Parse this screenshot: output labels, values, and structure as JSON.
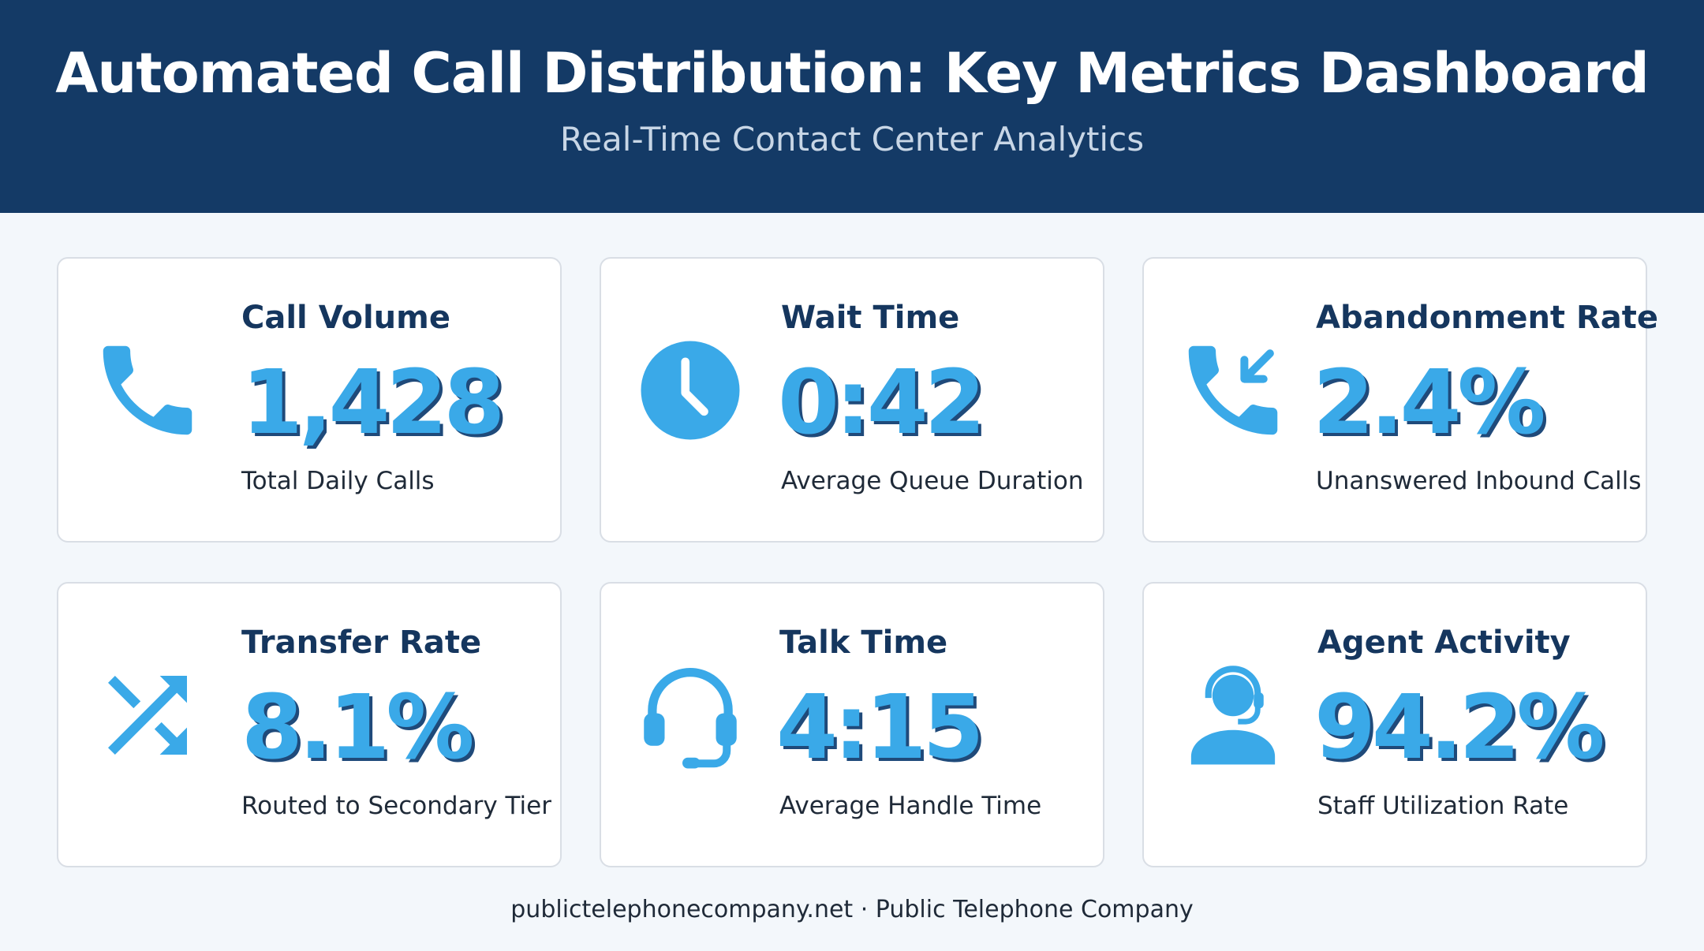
{
  "header": {
    "title": "Automated Call Distribution: Key Metrics Dashboard",
    "subtitle": "Real-Time Contact Center Analytics"
  },
  "colors": {
    "header_bg": "#143a66",
    "accent": "#3aa9e8",
    "accent_shadow": "#1f4a7a",
    "title_text": "#15365e",
    "page_bg": "#f3f7fb"
  },
  "cards": [
    {
      "title": "Call Volume",
      "value": "1,428",
      "description": "Total Daily Calls",
      "icon": "phone-icon"
    },
    {
      "title": "Wait Time",
      "value": "0:42",
      "description": "Average Queue Duration",
      "icon": "clock-icon"
    },
    {
      "title": "Abandonment Rate",
      "value": "2.4%",
      "description": "Unanswered Inbound Calls",
      "icon": "missed-call-icon"
    },
    {
      "title": "Transfer Rate",
      "value": "8.1%",
      "description": "Routed to Secondary Tier",
      "icon": "shuffle-icon"
    },
    {
      "title": "Talk Time",
      "value": "4:15",
      "description": "Average Handle Time",
      "icon": "headset-icon"
    },
    {
      "title": "Agent Activity",
      "value": "94.2%",
      "description": "Staff Utilization Rate",
      "icon": "agent-icon"
    }
  ],
  "footer": {
    "text": "publictelephonecompany.net · Public Telephone Company"
  }
}
